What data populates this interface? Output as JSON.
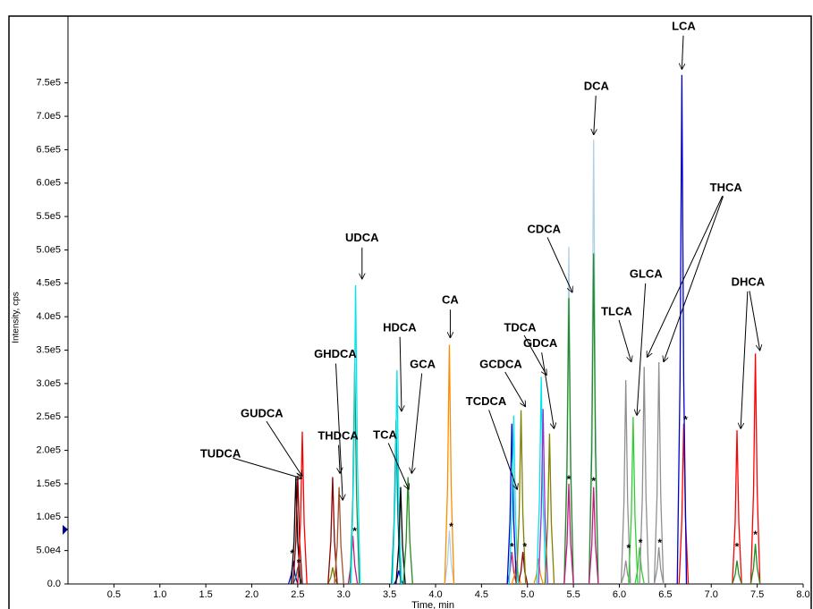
{
  "chart_data": {
    "type": "line",
    "x_label": "Time, min",
    "y_label": "Intensity, cps",
    "xlim": [
      0,
      8.0
    ],
    "ylim": [
      0,
      850000
    ],
    "xticks": [
      0.5,
      {
        "value": 1.0,
        "label": "1.0"
      },
      1.5,
      {
        "value": 2.0,
        "label": "2.0"
      },
      2.5,
      {
        "value": 3.0,
        "label": "3.0"
      },
      3.5,
      {
        "value": 4.0,
        "label": "4.0"
      },
      4.5,
      {
        "value": 5.0,
        "label": "5.0"
      },
      5.5,
      {
        "value": 6.0,
        "label": "6.0"
      },
      6.5,
      {
        "value": 7.0,
        "label": "7.0"
      },
      7.5,
      {
        "value": 8.0,
        "label": "8.0"
      }
    ],
    "yticks": [
      {
        "value": 0,
        "label": "0.0"
      },
      {
        "value": 50000,
        "label": "5.0e4"
      },
      {
        "value": 100000,
        "label": "1.0e5"
      },
      {
        "value": 150000,
        "label": "1.5e5"
      },
      {
        "value": 200000,
        "label": "2.0e5"
      },
      {
        "value": 250000,
        "label": "2.5e5"
      },
      {
        "value": 300000,
        "label": "3.0e5"
      },
      {
        "value": 350000,
        "label": "3.5e5"
      },
      {
        "value": 400000,
        "label": "4.0e5"
      },
      {
        "value": 450000,
        "label": "4.5e5"
      },
      {
        "value": 500000,
        "label": "5.0e5"
      },
      {
        "value": 550000,
        "label": "5.5e5"
      },
      {
        "value": 600000,
        "label": "6.0e5"
      },
      {
        "value": 650000,
        "label": "6.5e5"
      },
      {
        "value": 700000,
        "label": "7.0e5"
      },
      {
        "value": 750000,
        "label": "7.5e5"
      }
    ],
    "series": [
      {
        "color": "#0000cd",
        "x": [
          2.4,
          2.43,
          2.45,
          2.47,
          2.5
        ],
        "values": [
          0,
          14000,
          35000,
          14000,
          0
        ]
      },
      {
        "color": "#008080",
        "x": [
          2.45,
          2.48,
          2.5,
          2.52,
          2.55
        ],
        "values": [
          0,
          10000,
          25000,
          10000,
          0
        ]
      },
      {
        "color": "#000000",
        "x": [
          2.43,
          2.46,
          2.48,
          2.5,
          2.53
        ],
        "values": [
          0,
          64000,
          160000,
          64000,
          0
        ]
      },
      {
        "color": "#8b0000",
        "x": [
          2.45,
          2.48,
          2.5,
          2.52,
          2.55
        ],
        "values": [
          0,
          64800,
          162000,
          64800,
          0
        ]
      },
      {
        "color": "#ff0000",
        "x": [
          2.5,
          2.53,
          2.55,
          2.57,
          2.6
        ],
        "values": [
          0,
          91200,
          228000,
          91200,
          0
        ]
      },
      {
        "color": "#808000",
        "x": [
          2.83,
          2.86,
          2.88,
          2.9,
          2.93
        ],
        "values": [
          0,
          10000,
          25000,
          10000,
          0
        ]
      },
      {
        "color": "#8b0000",
        "x": [
          2.83,
          2.86,
          2.88,
          2.9,
          2.93
        ],
        "values": [
          0,
          64000,
          160000,
          64000,
          0
        ]
      },
      {
        "color": "#a0522d",
        "x": [
          2.9,
          2.93,
          2.95,
          2.97,
          3.0
        ],
        "values": [
          0,
          58000,
          145000,
          58000,
          0
        ]
      },
      {
        "color": "#c71585",
        "x": [
          3.05,
          3.08,
          3.1,
          3.12,
          3.15
        ],
        "values": [
          0,
          28800,
          72000,
          28800,
          0
        ]
      },
      {
        "color": "#2e8b57",
        "x": [
          3.07,
          3.1,
          3.12,
          3.14,
          3.17
        ],
        "values": [
          0,
          132000,
          330000,
          132000,
          0
        ]
      },
      {
        "color": "#00e5ee",
        "x": [
          3.08,
          3.11,
          3.13,
          3.15,
          3.18
        ],
        "values": [
          0,
          178800,
          447000,
          178800,
          0
        ]
      },
      {
        "color": "#0000cd",
        "x": [
          3.55,
          3.58,
          3.6,
          3.62,
          3.65
        ],
        "values": [
          0,
          8000,
          20000,
          8000,
          0
        ]
      },
      {
        "color": "#008080",
        "x": [
          3.52,
          3.55,
          3.57,
          3.59,
          3.62
        ],
        "values": [
          0,
          98000,
          245000,
          98000,
          0
        ]
      },
      {
        "color": "#00e5ee",
        "x": [
          3.53,
          3.56,
          3.58,
          3.6,
          3.63
        ],
        "values": [
          0,
          128000,
          320000,
          128000,
          0
        ]
      },
      {
        "color": "#000000",
        "x": [
          3.57,
          3.6,
          3.62,
          3.64,
          3.67
        ],
        "values": [
          0,
          58000,
          145000,
          58000,
          0
        ]
      },
      {
        "color": "#228b22",
        "x": [
          3.65,
          3.68,
          3.7,
          3.72,
          3.75
        ],
        "values": [
          0,
          64000,
          160000,
          64000,
          0
        ]
      },
      {
        "color": "#b0d0e8",
        "x": [
          4.1,
          4.13,
          4.15,
          4.17,
          4.2
        ],
        "values": [
          0,
          32000,
          80000,
          32000,
          0
        ]
      },
      {
        "color": "#ff8c00",
        "x": [
          4.1,
          4.13,
          4.15,
          4.17,
          4.2
        ],
        "values": [
          0,
          143200,
          358000,
          143200,
          0
        ]
      },
      {
        "color": "#c71585",
        "x": [
          4.78,
          4.81,
          4.83,
          4.85,
          4.88
        ],
        "values": [
          0,
          19200,
          48000,
          19200,
          0
        ]
      },
      {
        "color": "#ff8c00",
        "x": [
          4.83,
          4.86,
          4.88,
          4.9,
          4.93
        ],
        "values": [
          0,
          14000,
          35000,
          14000,
          0
        ]
      },
      {
        "color": "#8b0000",
        "x": [
          4.9,
          4.93,
          4.95,
          4.97,
          5.0
        ],
        "values": [
          0,
          19200,
          48000,
          19200,
          0
        ]
      },
      {
        "color": "#0000cd",
        "x": [
          4.78,
          4.81,
          4.83,
          4.85,
          4.88
        ],
        "values": [
          0,
          96000,
          240000,
          96000,
          0
        ]
      },
      {
        "color": "#00e5ee",
        "x": [
          4.8,
          4.83,
          4.85,
          4.87,
          4.9
        ],
        "values": [
          0,
          100800,
          252000,
          100800,
          0
        ]
      },
      {
        "color": "#808000",
        "x": [
          4.88,
          4.91,
          4.93,
          4.95,
          4.98
        ],
        "values": [
          0,
          104000,
          260000,
          104000,
          0
        ]
      },
      {
        "color": "#ff8c00",
        "x": [
          5.07,
          5.1,
          5.12,
          5.14,
          5.17
        ],
        "values": [
          0,
          15200,
          38000,
          15200,
          0
        ]
      },
      {
        "color": "#00e5ee",
        "x": [
          5.1,
          5.13,
          5.15,
          5.17,
          5.2
        ],
        "values": [
          0,
          124000,
          310000,
          124000,
          0
        ]
      },
      {
        "color": "#9932cc",
        "x": [
          5.12,
          5.15,
          5.17,
          5.19,
          5.22
        ],
        "values": [
          0,
          104800,
          262000,
          104800,
          0
        ]
      },
      {
        "color": "#808000",
        "x": [
          5.19,
          5.22,
          5.24,
          5.26,
          5.29
        ],
        "values": [
          0,
          90000,
          225000,
          90000,
          0
        ]
      },
      {
        "color": "#b0d0e8",
        "x": [
          5.4,
          5.43,
          5.45,
          5.47,
          5.5
        ],
        "values": [
          0,
          202000,
          505000,
          202000,
          0
        ]
      },
      {
        "color": "#228b22",
        "x": [
          5.4,
          5.43,
          5.45,
          5.47,
          5.5
        ],
        "values": [
          0,
          171200,
          428000,
          171200,
          0
        ]
      },
      {
        "color": "#c71585",
        "x": [
          5.4,
          5.43,
          5.45,
          5.47,
          5.5
        ],
        "values": [
          0,
          60000,
          150000,
          60000,
          0
        ]
      },
      {
        "color": "#b0d0e8",
        "x": [
          5.67,
          5.7,
          5.72,
          5.74,
          5.77
        ],
        "values": [
          0,
          266000,
          665000,
          266000,
          0
        ]
      },
      {
        "color": "#228b22",
        "x": [
          5.67,
          5.7,
          5.72,
          5.74,
          5.77
        ],
        "values": [
          0,
          198000,
          495000,
          198000,
          0
        ]
      },
      {
        "color": "#c71585",
        "x": [
          5.67,
          5.7,
          5.72,
          5.74,
          5.77
        ],
        "values": [
          0,
          58000,
          145000,
          58000,
          0
        ]
      },
      {
        "color": "#909090",
        "x": [
          6.02,
          6.05,
          6.07,
          6.09,
          6.12
        ],
        "values": [
          0,
          122000,
          305000,
          122000,
          0
        ]
      },
      {
        "color": "#909090",
        "x": [
          6.02,
          6.05,
          6.07,
          6.09,
          6.12
        ],
        "values": [
          0,
          14000,
          35000,
          14000,
          0
        ]
      },
      {
        "color": "#32cd32",
        "x": [
          6.1,
          6.13,
          6.15,
          6.17,
          6.2
        ],
        "values": [
          0,
          100000,
          250000,
          100000,
          0
        ]
      },
      {
        "color": "#32cd32",
        "x": [
          6.17,
          6.2,
          6.22,
          6.24,
          6.27
        ],
        "values": [
          0,
          22000,
          55000,
          22000,
          0
        ]
      },
      {
        "color": "#909090",
        "x": [
          6.22,
          6.25,
          6.27,
          6.29,
          6.32
        ],
        "values": [
          0,
          130000,
          325000,
          130000,
          0
        ]
      },
      {
        "color": "#909090",
        "x": [
          6.38,
          6.41,
          6.43,
          6.45,
          6.48
        ],
        "values": [
          0,
          132800,
          332000,
          132800,
          0
        ]
      },
      {
        "color": "#909090",
        "x": [
          6.38,
          6.41,
          6.43,
          6.45,
          6.48
        ],
        "values": [
          0,
          22000,
          55000,
          22000,
          0
        ]
      },
      {
        "color": "#ff0000",
        "x": [
          6.65,
          6.68,
          6.7,
          6.72,
          6.75
        ],
        "values": [
          0,
          96000,
          240000,
          96000,
          0
        ]
      },
      {
        "color": "#0000cd",
        "x": [
          6.63,
          6.66,
          6.68,
          6.7,
          6.73
        ],
        "values": [
          0,
          304800,
          762000,
          304800,
          0
        ]
      },
      {
        "color": "#ff0000",
        "x": [
          7.23,
          7.26,
          7.28,
          7.3,
          7.33
        ],
        "values": [
          0,
          92000,
          230000,
          92000,
          0
        ]
      },
      {
        "color": "#228b22",
        "x": [
          7.23,
          7.26,
          7.28,
          7.3,
          7.33
        ],
        "values": [
          0,
          14000,
          35000,
          14000,
          0
        ]
      },
      {
        "color": "#ff0000",
        "x": [
          7.43,
          7.46,
          7.48,
          7.5,
          7.53
        ],
        "values": [
          0,
          138000,
          345000,
          138000,
          0
        ]
      },
      {
        "color": "#228b22",
        "x": [
          7.43,
          7.46,
          7.48,
          7.5,
          7.53
        ],
        "values": [
          0,
          24000,
          60000,
          24000,
          0
        ]
      }
    ],
    "annotations": [
      {
        "text": "LCA",
        "x": 6.7,
        "y": 834000,
        "targets": [
          [
            6.68,
            770000
          ]
        ]
      },
      {
        "text": "DCA",
        "x": 5.75,
        "y": 744000,
        "targets": [
          [
            5.72,
            672000
          ]
        ]
      },
      {
        "text": "UDCA",
        "x": 3.2,
        "y": 517000,
        "targets": [
          [
            3.2,
            456000
          ]
        ]
      },
      {
        "text": "CA",
        "x": 4.16,
        "y": 424000,
        "targets": [
          [
            4.16,
            368000
          ]
        ]
      },
      {
        "text": "HDCA",
        "x": 3.61,
        "y": 383000,
        "targets": [
          [
            3.63,
            258000
          ]
        ]
      },
      {
        "text": "GCA",
        "x": 3.86,
        "y": 328000,
        "targets": [
          [
            3.74,
            165000
          ]
        ]
      },
      {
        "text": "TCA",
        "x": 3.45,
        "y": 222000,
        "targets": [
          [
            3.71,
            141000
          ]
        ]
      },
      {
        "text": "GHDCA",
        "x": 2.91,
        "y": 343000,
        "targets": [
          [
            2.99,
            125000
          ]
        ]
      },
      {
        "text": "THDCA",
        "x": 2.94,
        "y": 221000,
        "targets": [
          [
            2.96,
            165000
          ]
        ]
      },
      {
        "text": "GUDCA",
        "x": 2.11,
        "y": 254000,
        "targets": [
          [
            2.55,
            161000
          ]
        ]
      },
      {
        "text": "TUDCA",
        "x": 1.66,
        "y": 194000,
        "targets": [
          [
            2.55,
            158000
          ]
        ]
      },
      {
        "text": "TCDCA",
        "x": 4.55,
        "y": 272000,
        "targets": [
          [
            4.89,
            141000
          ]
        ]
      },
      {
        "text": "GCDCA",
        "x": 4.71,
        "y": 328000,
        "targets": [
          [
            4.98,
            265000
          ]
        ]
      },
      {
        "text": "TDCA",
        "x": 4.92,
        "y": 383000,
        "targets": [
          [
            5.21,
            312000
          ]
        ]
      },
      {
        "text": "GDCA",
        "x": 5.14,
        "y": 359000,
        "targets": [
          [
            5.29,
            232000
          ]
        ]
      },
      {
        "text": "CDCA",
        "x": 5.18,
        "y": 530000,
        "targets": [
          [
            5.49,
            436000
          ]
        ]
      },
      {
        "text": "TLCA",
        "x": 5.97,
        "y": 407000,
        "targets": [
          [
            6.13,
            332000
          ]
        ]
      },
      {
        "text": "GLCA",
        "x": 6.29,
        "y": 463000,
        "targets": [
          [
            6.19,
            252000
          ]
        ]
      },
      {
        "text": "THCA",
        "x": 7.16,
        "y": 592000,
        "targets": [
          [
            6.3,
            339000
          ],
          [
            6.48,
            332000
          ]
        ]
      },
      {
        "text": "DHCA",
        "x": 7.4,
        "y": 451000,
        "targets": [
          [
            7.32,
            232000
          ],
          [
            7.53,
            349000
          ]
        ]
      }
    ],
    "asterisk": {
      "text": "*",
      "points": [
        [
          2.44,
          42000
        ],
        [
          2.51,
          28000
        ],
        [
          3.12,
          75000
        ],
        [
          4.17,
          82000
        ],
        [
          4.83,
          52000
        ],
        [
          4.97,
          52000
        ],
        [
          5.45,
          153000
        ],
        [
          5.72,
          150000
        ],
        [
          6.1,
          50000
        ],
        [
          6.23,
          58000
        ],
        [
          6.44,
          58000
        ],
        [
          6.72,
          242000
        ],
        [
          7.28,
          52000
        ],
        [
          7.48,
          70000
        ]
      ]
    }
  }
}
